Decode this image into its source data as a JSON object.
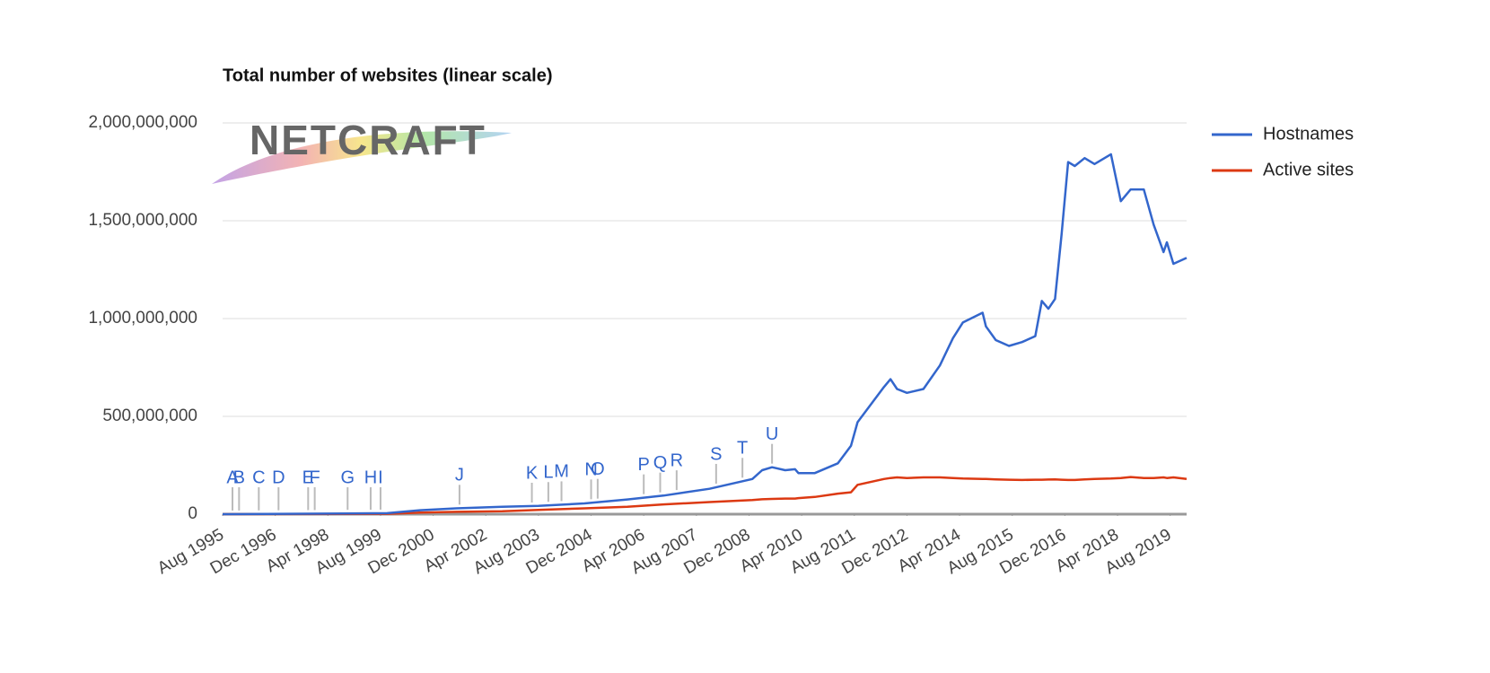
{
  "chart_data": {
    "type": "line",
    "title": "Total number of websites (linear scale)",
    "logo": "NETCRAFT",
    "x": [
      "1995-08",
      "1999-10",
      "2000-08",
      "2001-07",
      "2002-09",
      "2003-08",
      "2004-10",
      "2005-11",
      "2006-10",
      "2007-12",
      "2009-01",
      "2009-04",
      "2009-07",
      "2009-11",
      "2010-02",
      "2010-03",
      "2010-08",
      "2011-03",
      "2011-07",
      "2011-09",
      "2012-05",
      "2012-07",
      "2012-09",
      "2012-12",
      "2013-05",
      "2013-10",
      "2014-02",
      "2014-05",
      "2014-11",
      "2014-12",
      "2015-03",
      "2015-07",
      "2015-11",
      "2016-03",
      "2016-05",
      "2016-07",
      "2016-09",
      "2016-11",
      "2017-01",
      "2017-03",
      "2017-06",
      "2017-09",
      "2018-02",
      "2018-05",
      "2018-08",
      "2018-12",
      "2019-03",
      "2019-06",
      "2019-07",
      "2019-09",
      "2020-01"
    ],
    "series": [
      {
        "name": "Hostnames",
        "color": "#3366cc",
        "values": [
          0,
          5000000,
          20000000,
          30000000,
          38000000,
          42000000,
          55000000,
          75000000,
          95000000,
          130000000,
          180000000,
          225000000,
          240000000,
          225000000,
          230000000,
          210000000,
          210000000,
          260000000,
          350000000,
          470000000,
          650000000,
          690000000,
          640000000,
          620000000,
          640000000,
          760000000,
          900000000,
          980000000,
          1030000000,
          960000000,
          890000000,
          860000000,
          880000000,
          910000000,
          1090000000,
          1050000000,
          1100000000,
          1430000000,
          1800000000,
          1780000000,
          1820000000,
          1790000000,
          1840000000,
          1600000000,
          1660000000,
          1660000000,
          1480000000,
          1340000000,
          1390000000,
          1280000000,
          1310000000
        ]
      },
      {
        "name": "Active sites",
        "color": "#dc3912",
        "values": [
          0,
          2000000,
          8000000,
          12000000,
          15000000,
          22000000,
          30000000,
          38000000,
          50000000,
          62000000,
          72000000,
          76000000,
          78000000,
          80000000,
          80000000,
          82000000,
          88000000,
          105000000,
          112000000,
          150000000,
          180000000,
          185000000,
          188000000,
          185000000,
          188000000,
          188000000,
          185000000,
          182000000,
          180000000,
          180000000,
          178000000,
          176000000,
          175000000,
          176000000,
          176000000,
          177000000,
          178000000,
          176000000,
          175000000,
          175000000,
          178000000,
          180000000,
          182000000,
          185000000,
          190000000,
          185000000,
          185000000,
          188000000,
          185000000,
          188000000,
          180000000
        ]
      }
    ],
    "xlim": [
      "1995-08",
      "2020-01"
    ],
    "xticks": [
      {
        "value": "1995-08",
        "label": "Aug 1995"
      },
      {
        "value": "1996-12",
        "label": "Dec 1996"
      },
      {
        "value": "1998-04",
        "label": "Apr 1998"
      },
      {
        "value": "1999-08",
        "label": "Aug 1999"
      },
      {
        "value": "2000-12",
        "label": "Dec 2000"
      },
      {
        "value": "2002-04",
        "label": "Apr 2002"
      },
      {
        "value": "2003-08",
        "label": "Aug 2003"
      },
      {
        "value": "2004-12",
        "label": "Dec 2004"
      },
      {
        "value": "2006-04",
        "label": "Apr 2006"
      },
      {
        "value": "2007-08",
        "label": "Aug 2007"
      },
      {
        "value": "2008-12",
        "label": "Dec 2008"
      },
      {
        "value": "2010-04",
        "label": "Apr 2010"
      },
      {
        "value": "2011-08",
        "label": "Aug 2011"
      },
      {
        "value": "2012-12",
        "label": "Dec 2012"
      },
      {
        "value": "2014-04",
        "label": "Apr 2014"
      },
      {
        "value": "2015-08",
        "label": "Aug 2015"
      },
      {
        "value": "2016-12",
        "label": "Dec 2016"
      },
      {
        "value": "2018-04",
        "label": "Apr 2018"
      },
      {
        "value": "2019-08",
        "label": "Aug 2019"
      }
    ],
    "ylim": [
      0,
      2000000000
    ],
    "yticks": [
      0,
      {
        "value": 500000000,
        "label": "500,000,000"
      },
      {
        "value": 1000000000,
        "label": "1,000,000,000"
      },
      {
        "value": 1500000000,
        "label": "1,500,000,000"
      },
      {
        "value": 2000000000,
        "label": "2,000,000,000"
      }
    ],
    "grid": true,
    "legend": "right",
    "annotations": [
      {
        "x": "1995-11",
        "label": "A"
      },
      {
        "x": "1996-01",
        "label": "B"
      },
      {
        "x": "1996-07",
        "label": "C"
      },
      {
        "x": "1997-01",
        "label": "D"
      },
      {
        "x": "1997-10",
        "label": "E"
      },
      {
        "x": "1997-12",
        "label": "F"
      },
      {
        "x": "1998-10",
        "label": "G"
      },
      {
        "x": "1999-05",
        "label": "H"
      },
      {
        "x": "1999-08",
        "label": "I"
      },
      {
        "x": "2001-08",
        "label": "J"
      },
      {
        "x": "2003-06",
        "label": "K"
      },
      {
        "x": "2003-11",
        "label": "L"
      },
      {
        "x": "2004-03",
        "label": "M"
      },
      {
        "x": "2004-12",
        "label": "N"
      },
      {
        "x": "2005-02",
        "label": "O"
      },
      {
        "x": "2006-04",
        "label": "P"
      },
      {
        "x": "2006-09",
        "label": "Q"
      },
      {
        "x": "2007-02",
        "label": "R"
      },
      {
        "x": "2008-02",
        "label": "S"
      },
      {
        "x": "2008-10",
        "label": "T"
      },
      {
        "x": "2009-07",
        "label": "U"
      }
    ]
  }
}
